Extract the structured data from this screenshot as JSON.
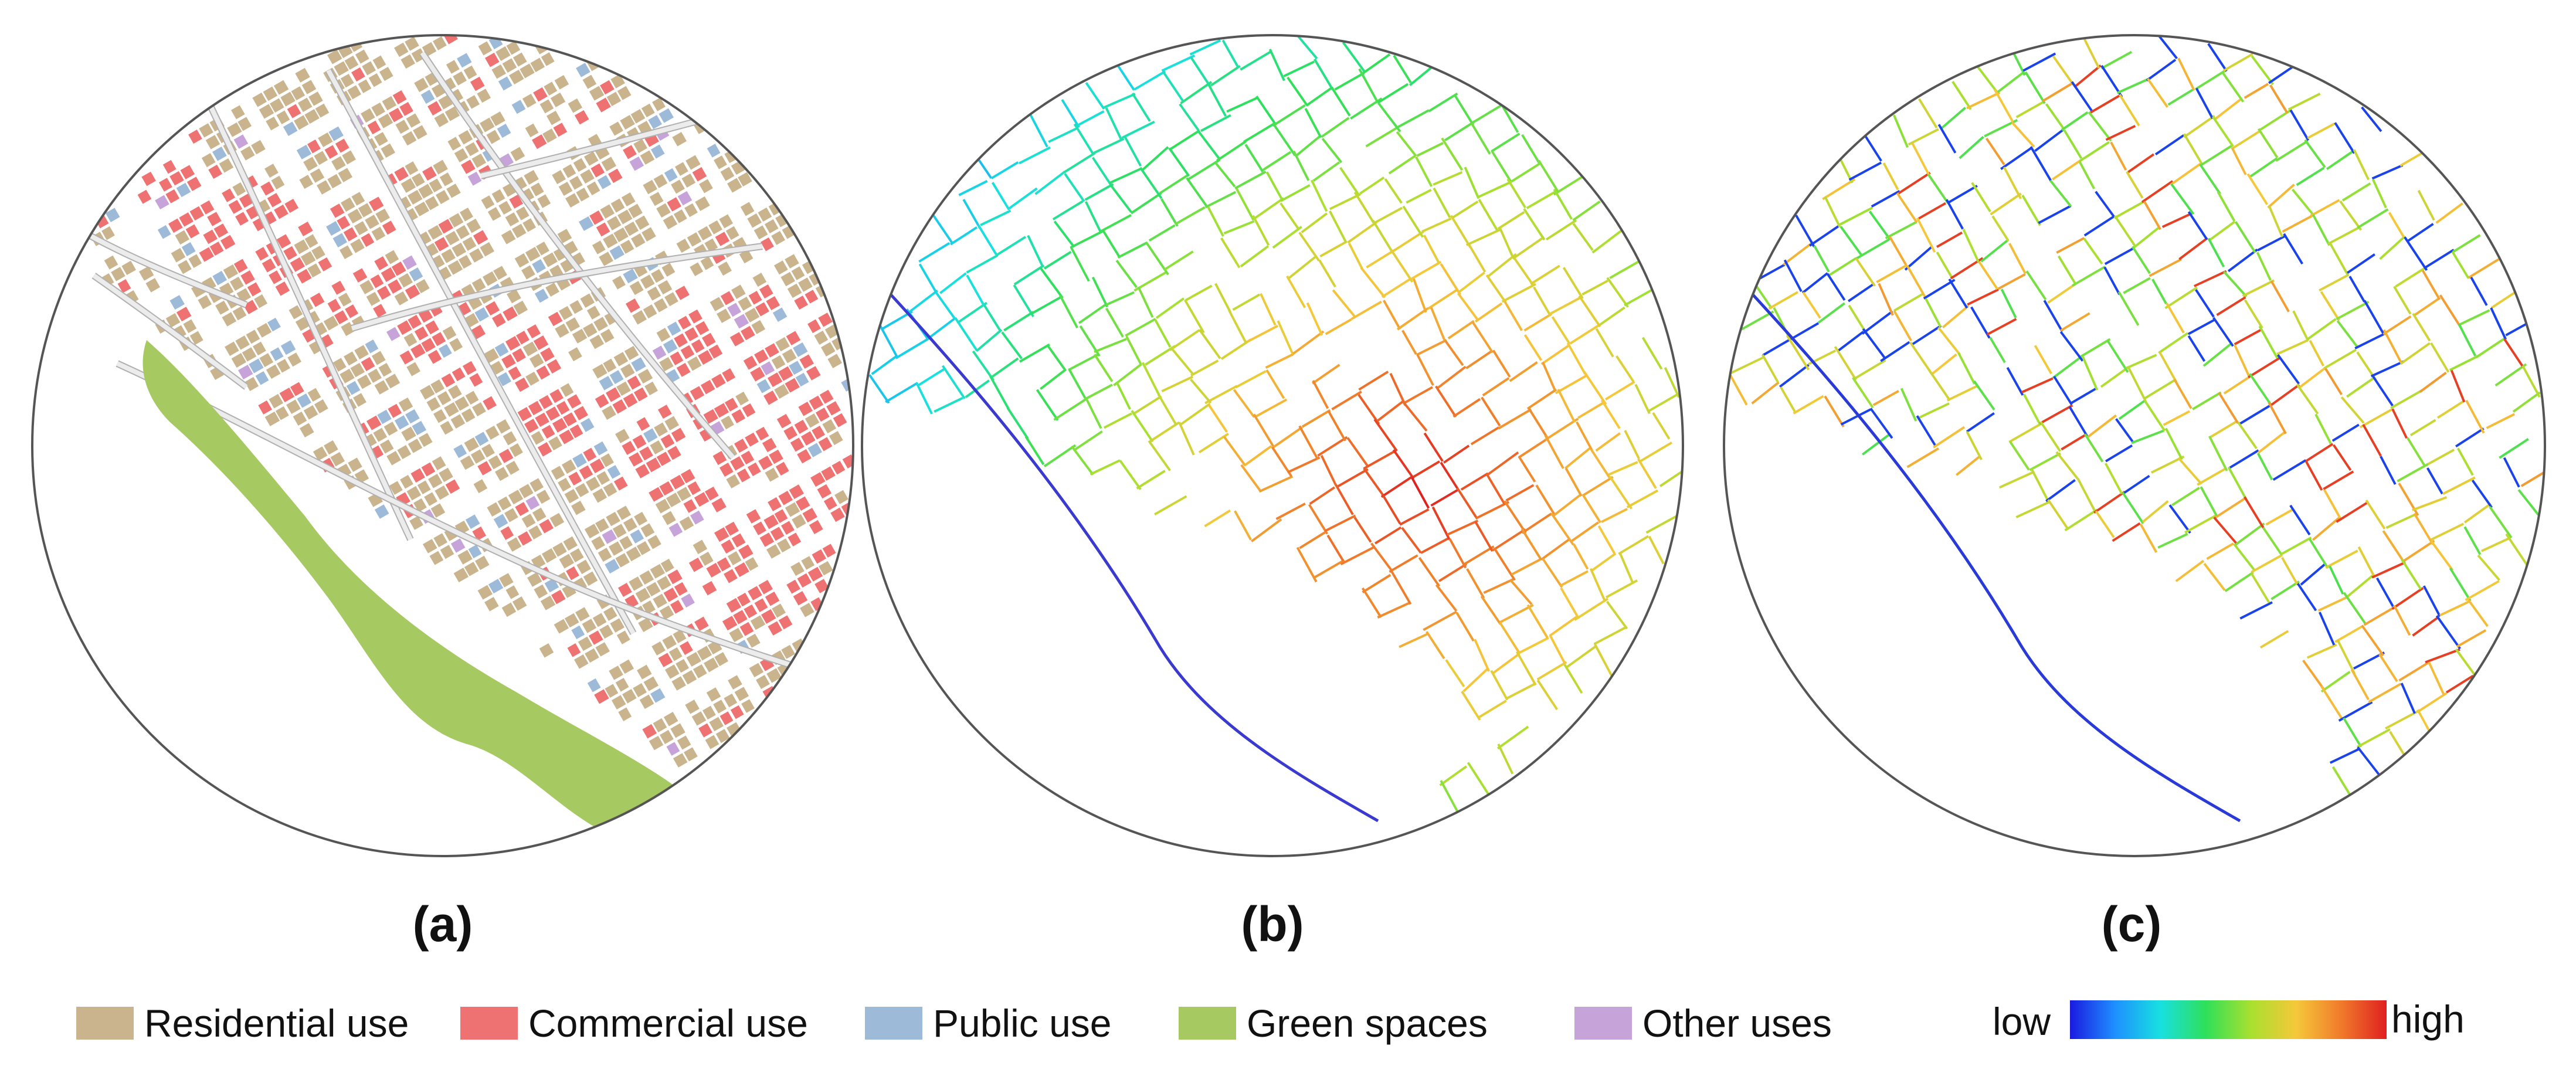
{
  "panels": [
    {
      "label": "(a)",
      "kind": "land-use map"
    },
    {
      "label": "(b)",
      "kind": "street network map"
    },
    {
      "label": "(c)",
      "kind": "street network map"
    }
  ],
  "legend": {
    "items": [
      {
        "name": "Residential use",
        "color": "#c9b48e"
      },
      {
        "name": "Commercial use",
        "color": "#ef7272"
      },
      {
        "name": "Public use",
        "color": "#9dbad8"
      },
      {
        "name": "Green spaces",
        "color": "#a6c962"
      },
      {
        "name": "Other uses",
        "color": "#c6a3d9"
      }
    ],
    "color_scale": {
      "low_label": "low",
      "high_label": "high",
      "stops": [
        "#1a1ae0",
        "#1e90ff",
        "#18e0e0",
        "#2ee05a",
        "#a8e030",
        "#f5c83a",
        "#f07a2a",
        "#e02020"
      ]
    }
  },
  "colors": {
    "frame": "#555555",
    "road_fill": "#ececec",
    "road_edge": "#b0b0b0"
  }
}
